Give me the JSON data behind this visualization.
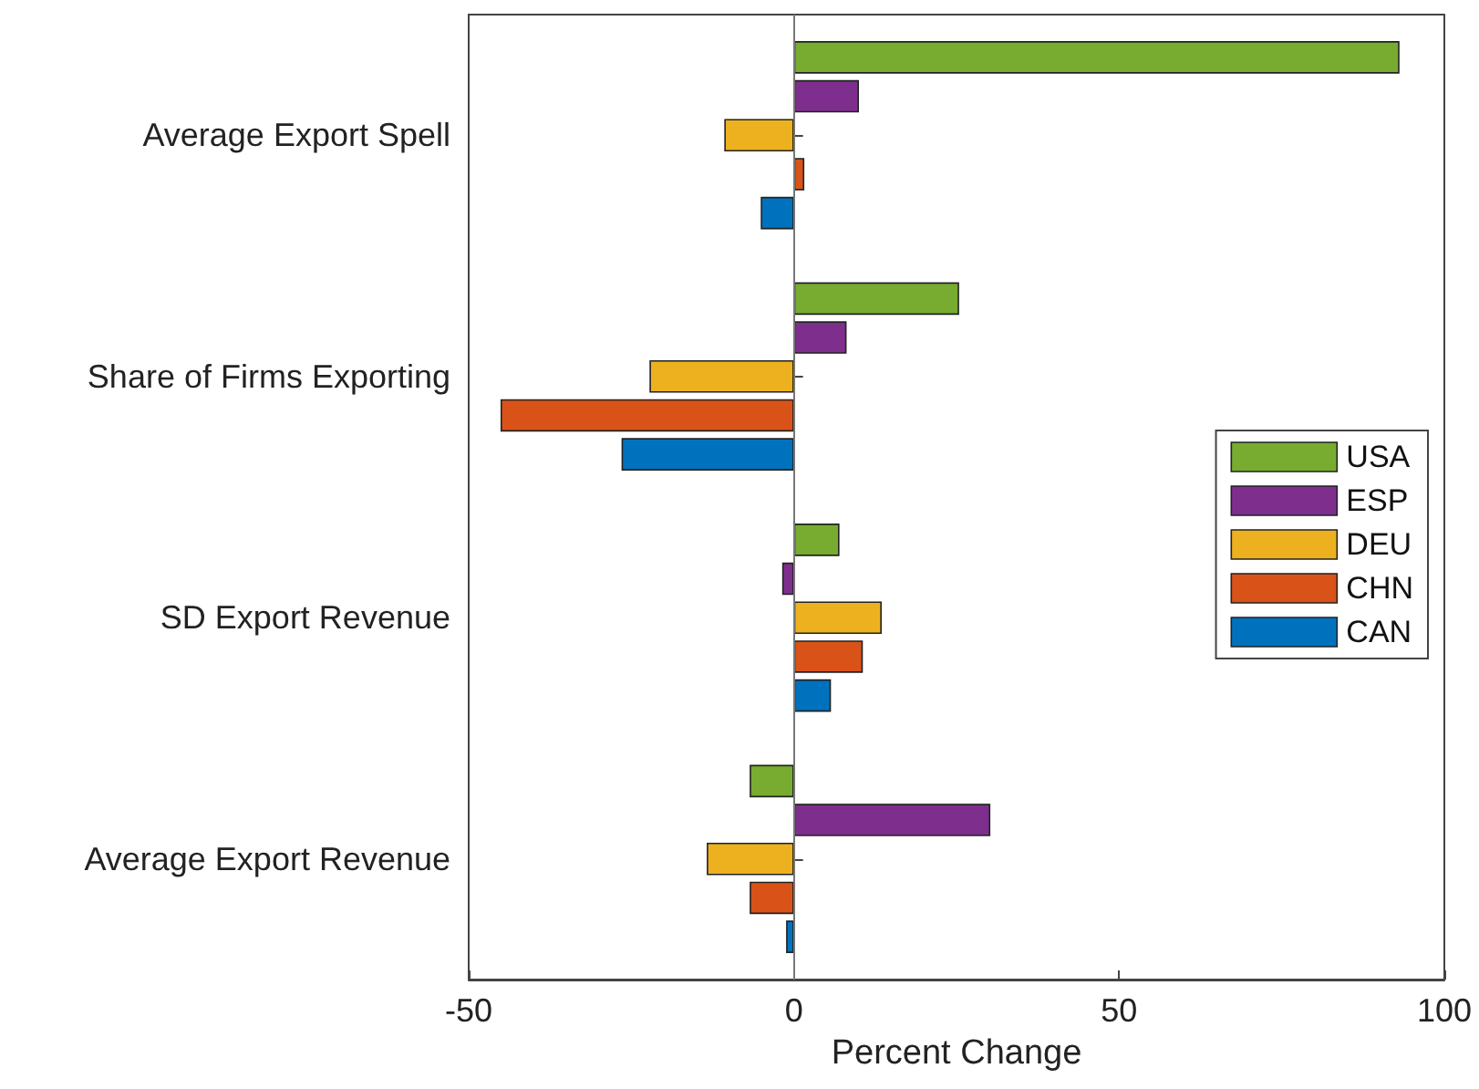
{
  "chart_data": {
    "type": "bar",
    "orientation": "horizontal",
    "xlabel": "Percent Change",
    "categories": [
      "Average Export Spell",
      "Share of Firms Exporting",
      "SD Export Revenue",
      "Average Export Revenue"
    ],
    "series": [
      {
        "name": "USA",
        "color": "#77ac30",
        "values": [
          93.1,
          25.4,
          7.0,
          -6.8
        ]
      },
      {
        "name": "ESP",
        "color": "#7e2f8e",
        "values": [
          10.0,
          8.1,
          -1.8,
          30.2
        ]
      },
      {
        "name": "DEU",
        "color": "#edb120",
        "values": [
          -10.7,
          -22.2,
          13.5,
          -13.4
        ]
      },
      {
        "name": "CHN",
        "color": "#d95319",
        "values": [
          1.6,
          -45.1,
          10.6,
          -6.8
        ]
      },
      {
        "name": "CAN",
        "color": "#0072bd",
        "values": [
          -5.1,
          -26.5,
          5.7,
          -1.2
        ]
      }
    ],
    "xlim": [
      -50,
      100
    ],
    "xticks": [
      -50,
      0,
      50,
      100
    ],
    "legend": "right",
    "ref_lines": [
      {
        "axis": "x",
        "value": 0,
        "color": "#777777"
      }
    ]
  }
}
